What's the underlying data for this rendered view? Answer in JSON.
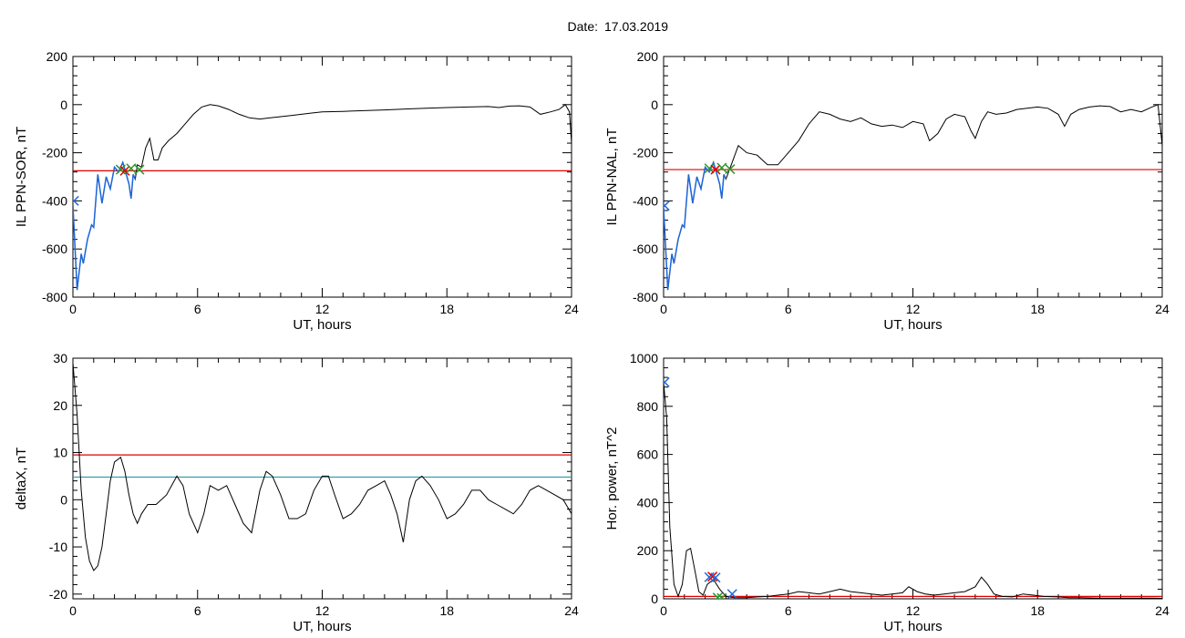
{
  "header": {
    "date_label": "Date:",
    "date_value": "17.03.2019"
  },
  "chart_data": [
    {
      "type": "line",
      "panel": "top-left",
      "title": "",
      "xlabel": "UT, hours",
      "ylabel": "IL PPN-SOR, nT",
      "xlim": [
        0,
        24
      ],
      "ylim": [
        -800,
        200
      ],
      "xticks": [
        0,
        6,
        12,
        18,
        24
      ],
      "yticks": [
        -800,
        -600,
        -400,
        -200,
        0,
        200
      ],
      "series": [
        {
          "color": "#000000",
          "x": [
            0,
            0.2,
            0.4,
            0.5,
            0.7,
            0.9,
            1.0,
            1.2,
            1.4,
            1.6,
            1.8,
            2.0,
            2.2,
            2.4,
            2.6,
            2.7,
            2.8,
            2.9,
            3.0,
            3.1,
            3.3,
            3.5,
            3.7,
            3.9,
            4.1,
            4.3,
            4.6,
            5.0,
            5.4,
            5.8,
            6.2,
            6.6,
            7.0,
            7.5,
            8.0,
            8.5,
            9.0,
            9.5,
            10.0,
            10.5,
            11.0,
            11.5,
            12.0,
            13.0,
            14.0,
            15.0,
            16.0,
            17.0,
            18.0,
            19.0,
            20.0,
            20.5,
            21.0,
            21.5,
            22.0,
            22.5,
            23.0,
            23.4,
            23.7,
            23.9,
            24.0
          ],
          "y": [
            -420,
            -770,
            -620,
            -660,
            -560,
            -500,
            -510,
            -290,
            -410,
            -300,
            -350,
            -260,
            -280,
            -240,
            -300,
            -330,
            -390,
            -290,
            -310,
            -250,
            -260,
            -180,
            -140,
            -230,
            -230,
            -180,
            -150,
            -120,
            -80,
            -40,
            -10,
            0,
            -5,
            -20,
            -40,
            -55,
            -60,
            -55,
            -50,
            -45,
            -40,
            -35,
            -30,
            -28,
            -25,
            -22,
            -18,
            -15,
            -12,
            -10,
            -8,
            -12,
            -6,
            -5,
            -10,
            -40,
            -30,
            -20,
            0,
            -30,
            -160
          ]
        },
        {
          "color": "#1f66d9",
          "x": [
            0,
            0.2,
            0.4,
            0.5,
            0.7,
            0.9,
            1.0,
            1.2,
            1.4,
            1.6,
            1.8,
            2.0,
            2.2,
            2.4,
            2.6,
            2.7,
            2.8,
            2.9,
            3.0
          ],
          "y": [
            -420,
            -770,
            -620,
            -660,
            -560,
            -500,
            -510,
            -290,
            -410,
            -300,
            -350,
            -260,
            -280,
            -240,
            -300,
            -330,
            -390,
            -290,
            -310
          ]
        }
      ],
      "hlines": [
        {
          "y": -275,
          "color": "#e00000"
        }
      ],
      "markers": [
        {
          "x": 0.05,
          "y": -400,
          "color": "#1f66d9"
        },
        {
          "x": 2.3,
          "y": -270,
          "color": "#2a9a2a"
        },
        {
          "x": 2.5,
          "y": -275,
          "color": "#e00000"
        },
        {
          "x": 2.8,
          "y": -265,
          "color": "#2a9a2a"
        },
        {
          "x": 3.2,
          "y": -270,
          "color": "#2a9a2a"
        }
      ]
    },
    {
      "type": "line",
      "panel": "top-right",
      "title": "",
      "xlabel": "UT, hours",
      "ylabel": "IL PPN-NAL, nT",
      "xlim": [
        0,
        24
      ],
      "ylim": [
        -800,
        200
      ],
      "xticks": [
        0,
        6,
        12,
        18,
        24
      ],
      "yticks": [
        -800,
        -600,
        -400,
        -200,
        0,
        200
      ],
      "series": [
        {
          "color": "#000000",
          "x": [
            0,
            0.2,
            0.4,
            0.5,
            0.7,
            0.9,
            1.0,
            1.2,
            1.4,
            1.6,
            1.8,
            2.0,
            2.2,
            2.4,
            2.6,
            2.7,
            2.8,
            2.9,
            3.0,
            3.3,
            3.6,
            4.0,
            4.5,
            5.0,
            5.5,
            6.0,
            6.5,
            7.0,
            7.5,
            8.0,
            8.5,
            9.0,
            9.5,
            10.0,
            10.5,
            11.0,
            11.5,
            12.0,
            12.5,
            12.8,
            13.2,
            13.6,
            14.0,
            14.5,
            14.8,
            15.0,
            15.3,
            15.6,
            16.0,
            16.5,
            17.0,
            17.5,
            18.0,
            18.5,
            19.0,
            19.3,
            19.6,
            20.0,
            20.5,
            21.0,
            21.5,
            22.0,
            22.5,
            23.0,
            23.5,
            23.8,
            24.0
          ],
          "y": [
            -430,
            -770,
            -620,
            -660,
            -560,
            -500,
            -510,
            -290,
            -410,
            -300,
            -350,
            -260,
            -280,
            -240,
            -300,
            -330,
            -390,
            -290,
            -310,
            -240,
            -170,
            -200,
            -210,
            -250,
            -250,
            -200,
            -150,
            -80,
            -30,
            -40,
            -60,
            -70,
            -55,
            -80,
            -90,
            -85,
            -95,
            -70,
            -80,
            -150,
            -120,
            -60,
            -40,
            -50,
            -110,
            -140,
            -70,
            -30,
            -40,
            -35,
            -20,
            -15,
            -10,
            -15,
            -40,
            -90,
            -40,
            -20,
            -10,
            -5,
            -8,
            -30,
            -20,
            -30,
            -10,
            0,
            -170
          ]
        },
        {
          "color": "#1f66d9",
          "x": [
            0,
            0.2,
            0.4,
            0.5,
            0.7,
            0.9,
            1.0,
            1.2,
            1.4,
            1.6,
            1.8,
            2.0,
            2.2,
            2.4,
            2.6,
            2.7,
            2.8,
            2.9,
            3.0
          ],
          "y": [
            -430,
            -770,
            -620,
            -660,
            -560,
            -500,
            -510,
            -290,
            -410,
            -300,
            -350,
            -260,
            -280,
            -240,
            -300,
            -330,
            -390,
            -290,
            -310
          ]
        }
      ],
      "hlines": [
        {
          "y": -270,
          "color": "#e00000"
        }
      ],
      "markers": [
        {
          "x": 0.05,
          "y": -420,
          "color": "#1f66d9"
        },
        {
          "x": 2.2,
          "y": -265,
          "color": "#2a9a2a"
        },
        {
          "x": 2.5,
          "y": -270,
          "color": "#e00000"
        },
        {
          "x": 2.8,
          "y": -262,
          "color": "#2a9a2a"
        },
        {
          "x": 3.2,
          "y": -268,
          "color": "#2a9a2a"
        }
      ]
    },
    {
      "type": "line",
      "panel": "bottom-left",
      "title": "",
      "xlabel": "UT, hours",
      "ylabel": "deltaX, nT",
      "xlim": [
        0,
        24
      ],
      "ylim": [
        -21,
        30
      ],
      "xticks": [
        0,
        6,
        12,
        18,
        24
      ],
      "yticks": [
        -20,
        -10,
        0,
        10,
        20,
        30
      ],
      "series": [
        {
          "color": "#000000",
          "x": [
            0,
            0.2,
            0.4,
            0.6,
            0.8,
            1.0,
            1.2,
            1.4,
            1.6,
            1.8,
            2.0,
            2.3,
            2.5,
            2.7,
            2.9,
            3.1,
            3.3,
            3.6,
            4.0,
            4.5,
            5.0,
            5.3,
            5.6,
            6.0,
            6.3,
            6.6,
            7.0,
            7.4,
            7.8,
            8.2,
            8.6,
            9.0,
            9.3,
            9.6,
            10.0,
            10.4,
            10.8,
            11.2,
            11.6,
            12.0,
            12.3,
            12.6,
            13.0,
            13.4,
            13.8,
            14.2,
            14.6,
            15.0,
            15.3,
            15.6,
            15.9,
            16.2,
            16.5,
            16.8,
            17.2,
            17.6,
            18.0,
            18.4,
            18.8,
            19.2,
            19.6,
            20.0,
            20.4,
            20.8,
            21.2,
            21.6,
            22.0,
            22.4,
            22.8,
            23.2,
            23.6,
            24.0
          ],
          "y": [
            29,
            18,
            2,
            -8,
            -13,
            -15,
            -14,
            -10,
            -3,
            4,
            8,
            9,
            6,
            1,
            -3,
            -5,
            -3,
            -1,
            -1,
            1,
            5,
            3,
            -3,
            -7,
            -3,
            3,
            2,
            3,
            -1,
            -5,
            -7,
            2,
            6,
            5,
            1,
            -4,
            -4,
            -3,
            2,
            5,
            5,
            1,
            -4,
            -3,
            -1,
            2,
            3,
            4,
            1,
            -3,
            -9,
            0,
            4,
            5,
            3,
            0,
            -4,
            -3,
            -1,
            2,
            2,
            0,
            -1,
            -2,
            -3,
            -1,
            2,
            3,
            2,
            1,
            0,
            -3
          ]
        }
      ],
      "hlines": [
        {
          "y": 9.5,
          "color": "#e00000"
        },
        {
          "y": 4.8,
          "color": "#2a9ab0"
        }
      ],
      "markers": []
    },
    {
      "type": "line",
      "panel": "bottom-right",
      "title": "",
      "xlabel": "UT, hours",
      "ylabel": "Hor. power, nT^2",
      "xlim": [
        0,
        24
      ],
      "ylim": [
        0,
        1000
      ],
      "xticks": [
        0,
        6,
        12,
        18,
        24
      ],
      "yticks": [
        0,
        200,
        400,
        600,
        800,
        1000
      ],
      "series": [
        {
          "color": "#000000",
          "x": [
            0,
            0.15,
            0.3,
            0.5,
            0.7,
            0.9,
            1.1,
            1.3,
            1.5,
            1.7,
            1.9,
            2.1,
            2.4,
            2.7,
            3.0,
            3.4,
            4.0,
            4.5,
            5.0,
            5.5,
            6.0,
            6.5,
            7.0,
            7.5,
            8.0,
            8.5,
            9.0,
            9.5,
            10.0,
            10.5,
            11.0,
            11.5,
            11.8,
            12.2,
            12.6,
            13.0,
            13.5,
            14.0,
            14.5,
            15.0,
            15.3,
            15.6,
            15.9,
            16.3,
            16.8,
            17.3,
            17.8,
            18.3,
            19.0,
            19.5,
            20.0,
            21.0,
            22.0,
            23.0,
            23.5,
            24.0
          ],
          "y": [
            900,
            750,
            300,
            60,
            10,
            60,
            200,
            210,
            120,
            30,
            15,
            60,
            80,
            40,
            10,
            5,
            5,
            8,
            10,
            15,
            20,
            30,
            25,
            20,
            30,
            40,
            30,
            25,
            20,
            15,
            20,
            25,
            50,
            30,
            20,
            15,
            20,
            25,
            30,
            50,
            90,
            60,
            20,
            10,
            8,
            20,
            15,
            10,
            8,
            5,
            5,
            3,
            3,
            3,
            3,
            2
          ]
        }
      ],
      "hlines": [
        {
          "y": 10,
          "color": "#e00000"
        }
      ],
      "markers": [
        {
          "x": 0.05,
          "y": 900,
          "color": "#1f66d9"
        },
        {
          "x": 2.2,
          "y": 90,
          "color": "#1f66d9"
        },
        {
          "x": 2.35,
          "y": 92,
          "color": "#e00000"
        },
        {
          "x": 2.5,
          "y": 88,
          "color": "#1f66d9"
        },
        {
          "x": 2.6,
          "y": 5,
          "color": "#2a9a2a"
        },
        {
          "x": 2.8,
          "y": 3,
          "color": "#2a9a2a"
        },
        {
          "x": 3.3,
          "y": 20,
          "color": "#1f66d9"
        }
      ]
    }
  ]
}
